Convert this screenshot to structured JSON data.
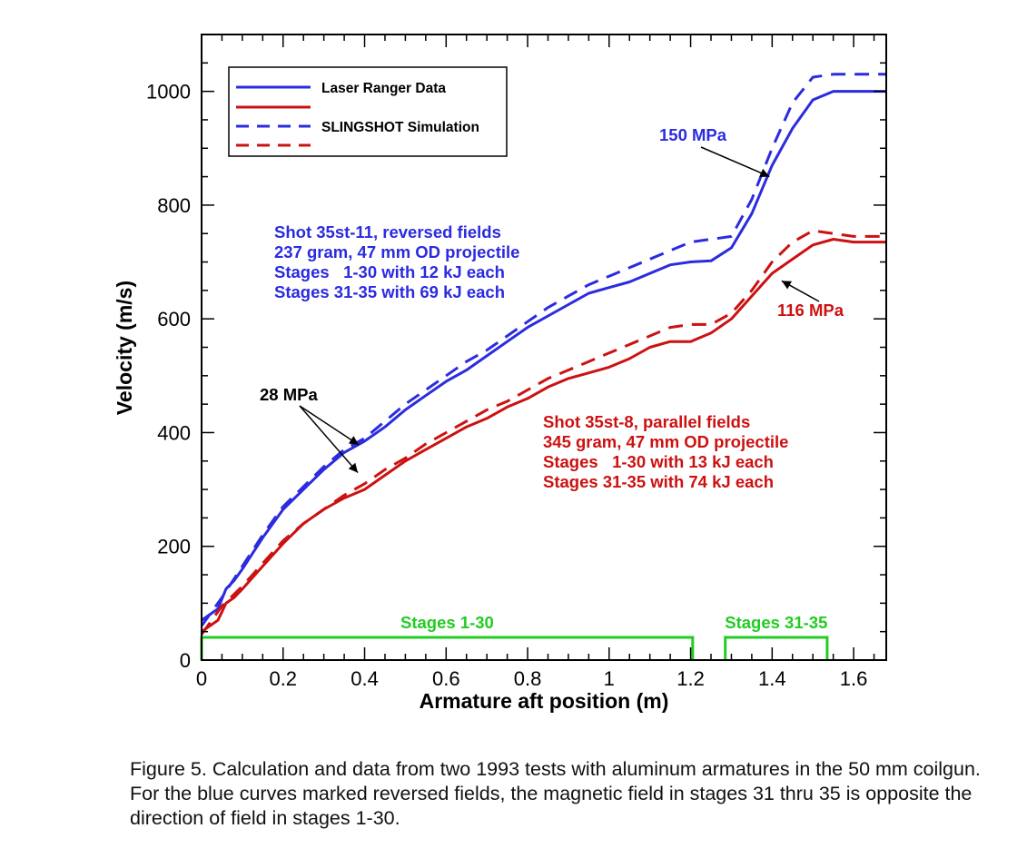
{
  "chart_data": {
    "type": "line",
    "xlabel": "Armature aft position (m)",
    "ylabel": "Velocity (m/s)",
    "xlim": [
      0,
      1.68
    ],
    "ylim": [
      0,
      1100
    ],
    "x_ticks": [
      0,
      0.2,
      0.4,
      0.6,
      0.8,
      1,
      1.2,
      1.4,
      1.6
    ],
    "x_tick_labels": [
      "0",
      "0.2",
      "0.4",
      "0.6",
      "0.8",
      "1",
      "1.2",
      "1.4",
      "1.6"
    ],
    "y_ticks": [
      0,
      200,
      400,
      600,
      800,
      1000
    ],
    "y_tick_labels": [
      "0",
      "200",
      "400",
      "600",
      "800",
      "1000"
    ],
    "grid": false,
    "legend": {
      "placement": "top-left",
      "entries": [
        {
          "label": "Laser Ranger Data",
          "color": "#2b2be0",
          "style": "solid"
        },
        {
          "label": "",
          "color": "#cc1111",
          "style": "solid"
        },
        {
          "label": "SLINGSHOT Simulation",
          "color": "#2b2be0",
          "style": "dashed"
        },
        {
          "label": "",
          "color": "#cc1111",
          "style": "dashed"
        }
      ]
    },
    "colors": {
      "blue": "#2b2be0",
      "red": "#cc1111",
      "green": "#22cc22"
    },
    "series": [
      {
        "color": "#2b2be0",
        "style": "solid",
        "x": [
          0,
          0.02,
          0.04,
          0.06,
          0.08,
          0.1,
          0.15,
          0.2,
          0.25,
          0.3,
          0.35,
          0.4,
          0.45,
          0.5,
          0.55,
          0.6,
          0.65,
          0.7,
          0.75,
          0.8,
          0.85,
          0.9,
          0.95,
          1.0,
          1.05,
          1.1,
          1.15,
          1.2,
          1.25,
          1.3,
          1.35,
          1.4,
          1.45,
          1.5,
          1.55,
          1.6,
          1.68
        ],
        "y": [
          70,
          80,
          90,
          125,
          140,
          160,
          215,
          265,
          300,
          335,
          365,
          385,
          410,
          440,
          465,
          490,
          510,
          535,
          560,
          585,
          605,
          625,
          645,
          655,
          665,
          680,
          695,
          700,
          702,
          725,
          785,
          870,
          935,
          985,
          1000,
          1000,
          1000
        ]
      },
      {
        "color": "#cc1111",
        "style": "solid",
        "x": [
          0,
          0.02,
          0.04,
          0.06,
          0.08,
          0.1,
          0.15,
          0.2,
          0.25,
          0.3,
          0.35,
          0.4,
          0.45,
          0.5,
          0.55,
          0.6,
          0.65,
          0.7,
          0.75,
          0.8,
          0.85,
          0.9,
          0.95,
          1.0,
          1.05,
          1.1,
          1.15,
          1.2,
          1.25,
          1.3,
          1.35,
          1.4,
          1.45,
          1.5,
          1.55,
          1.6,
          1.68
        ],
        "y": [
          50,
          60,
          70,
          100,
          110,
          125,
          165,
          205,
          240,
          265,
          285,
          300,
          325,
          350,
          370,
          390,
          410,
          425,
          445,
          460,
          480,
          495,
          505,
          515,
          530,
          550,
          560,
          560,
          575,
          600,
          640,
          680,
          705,
          730,
          740,
          735,
          735
        ]
      },
      {
        "name": "SLINGSHOT Simulation",
        "color": "#2b2be0",
        "style": "dashed",
        "x": [
          0,
          0.05,
          0.1,
          0.15,
          0.2,
          0.25,
          0.3,
          0.35,
          0.4,
          0.45,
          0.5,
          0.55,
          0.6,
          0.65,
          0.7,
          0.75,
          0.8,
          0.85,
          0.9,
          0.95,
          1.0,
          1.05,
          1.1,
          1.15,
          1.2,
          1.25,
          1.3,
          1.35,
          1.4,
          1.45,
          1.5,
          1.55,
          1.6,
          1.68
        ],
        "y": [
          60,
          110,
          165,
          220,
          270,
          305,
          340,
          370,
          390,
          420,
          450,
          475,
          500,
          525,
          545,
          570,
          595,
          620,
          640,
          660,
          675,
          690,
          705,
          720,
          735,
          740,
          745,
          810,
          900,
          980,
          1025,
          1030,
          1030,
          1030
        ]
      },
      {
        "name": "SLINGSHOT Simulation",
        "color": "#cc1111",
        "style": "dashed",
        "x": [
          0,
          0.05,
          0.1,
          0.15,
          0.2,
          0.25,
          0.3,
          0.35,
          0.4,
          0.45,
          0.5,
          0.55,
          0.6,
          0.65,
          0.7,
          0.75,
          0.8,
          0.85,
          0.9,
          0.95,
          1.0,
          1.05,
          1.1,
          1.15,
          1.2,
          1.25,
          1.3,
          1.35,
          1.4,
          1.45,
          1.5,
          1.55,
          1.6,
          1.68
        ],
        "y": [
          45,
          95,
          130,
          170,
          210,
          240,
          265,
          290,
          310,
          335,
          355,
          380,
          400,
          420,
          440,
          455,
          475,
          495,
          510,
          525,
          540,
          555,
          570,
          585,
          590,
          590,
          610,
          650,
          700,
          735,
          755,
          750,
          745,
          745
        ]
      }
    ],
    "annotations": {
      "blue_shot": [
        "Shot 35st-11, reversed fields",
        "237 gram, 47 mm OD projectile",
        "Stages   1-30 with 12 kJ each",
        "Stages 31-35 with 69 kJ each"
      ],
      "red_shot": [
        "Shot 35st-8, parallel fields",
        "345 gram, 47 mm OD projectile",
        "Stages   1-30 with 13 kJ each",
        "Stages 31-35 with 74 kJ each"
      ],
      "blue_pressure": {
        "label": "150 MPa",
        "target": [
          1.4,
          855
        ]
      },
      "red_pressure": {
        "label": "116 MPa",
        "target": [
          1.41,
          670
        ]
      },
      "low_pressure": {
        "label": "28 MPa",
        "targets": [
          [
            0.39,
            385
          ],
          [
            0.37,
            320
          ]
        ]
      }
    },
    "stage_brackets": [
      {
        "label": "Stages 1-30",
        "x_start": 0,
        "x_end": 1.205,
        "level": 40
      },
      {
        "label": "Stages 31-35",
        "x_start": 1.285,
        "x_end": 1.535,
        "level": 40
      }
    ]
  },
  "caption": "Figure 5.  Calculation and data from two 1993 tests with aluminum armatures in the 50 mm coilgun.   For the blue curves marked reversed fields, the magnetic field in stages 31 thru 35 is opposite the direction of field in stages 1-30."
}
